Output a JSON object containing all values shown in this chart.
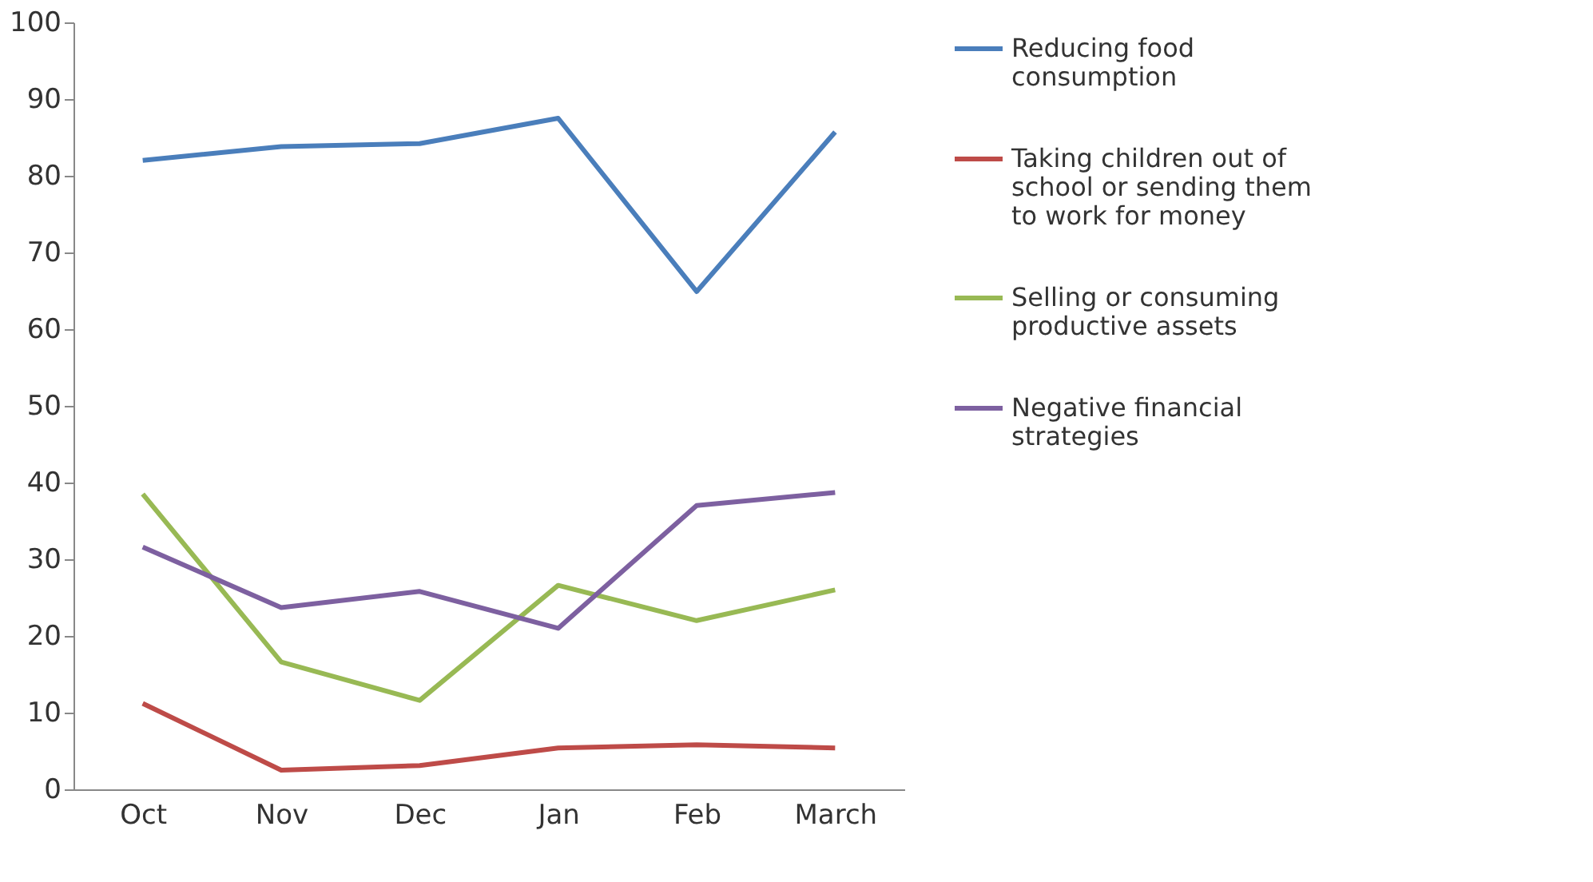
{
  "chart_data": {
    "type": "line",
    "categories": [
      "Oct",
      "Nov",
      "Dec",
      "Jan",
      "Feb",
      "March"
    ],
    "series": [
      {
        "name": "Reducing food consumption",
        "color": "#4a7ebb",
        "values": [
          82,
          83.8,
          84.2,
          87.5,
          64.9,
          85.7
        ]
      },
      {
        "name": "Taking children out of school or sending them to work for money",
        "color": "#be4b48",
        "values": [
          11.2,
          2.5,
          3.1,
          5.4,
          5.8,
          5.4
        ]
      },
      {
        "name": "Selling or consuming productive assets",
        "color": "#98b954",
        "values": [
          38.5,
          16.6,
          11.6,
          26.6,
          22,
          26
        ]
      },
      {
        "name": "Negative financial strategies",
        "color": "#7d60a0",
        "values": [
          31.6,
          23.7,
          25.8,
          21,
          37,
          38.7
        ]
      }
    ],
    "ylim": [
      0,
      100
    ],
    "yticks": [
      0,
      10,
      20,
      30,
      40,
      50,
      60,
      70,
      80,
      90,
      100
    ],
    "grid": false,
    "legend": "right",
    "marker": "none",
    "line_style": "solid"
  }
}
